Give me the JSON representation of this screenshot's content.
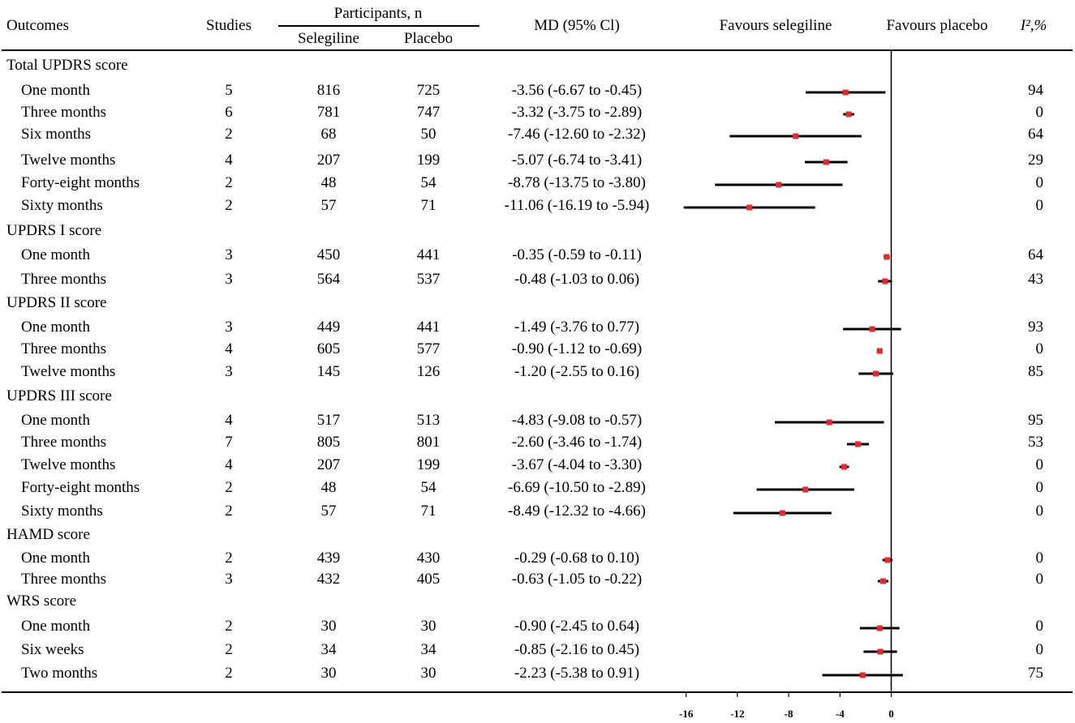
{
  "headers": {
    "outcomes": "Outcomes",
    "studies": "Studies",
    "participants": "Participants, n",
    "selegiline": "Selegiline",
    "placebo": "Placebo",
    "md": "MD (95% Cl)",
    "favours_selegiline": "Favours selegiline",
    "favours_placebo": "Favours placebo",
    "i2": "I²,%"
  },
  "chart_data": {
    "type": "forest",
    "title": "",
    "xlabel": "",
    "xlim": [
      -17.5,
      2.3
    ],
    "xticks": [
      -16,
      -12,
      -8,
      -4,
      0
    ],
    "xtick_labels": [
      "-16",
      "-12",
      "-8",
      "-4",
      "0"
    ],
    "reference_line": 0,
    "groups": [
      {
        "name": "Total UPDRS score",
        "rows": [
          {
            "label": "One month",
            "studies": "5",
            "selegiline": "816",
            "placebo": "725",
            "md_text": "-3.56 (-6.67 to -0.45)",
            "md": -3.56,
            "lo": -6.67,
            "hi": -0.45,
            "i2": "94"
          },
          {
            "label": "Three months",
            "studies": "6",
            "selegiline": "781",
            "placebo": "747",
            "md_text": "-3.32 (-3.75 to -2.89)",
            "md": -3.32,
            "lo": -3.75,
            "hi": -2.89,
            "i2": "0"
          },
          {
            "label": "Six months",
            "studies": "2",
            "selegiline": "68",
            "placebo": "50",
            "md_text": "-7.46 (-12.60 to -2.32)",
            "md": -7.46,
            "lo": -12.6,
            "hi": -2.32,
            "i2": "64"
          },
          {
            "label": "Twelve months",
            "studies": "4",
            "selegiline": "207",
            "placebo": "199",
            "md_text": "-5.07 (-6.74 to -3.41)",
            "md": -5.07,
            "lo": -6.74,
            "hi": -3.41,
            "i2": "29"
          },
          {
            "label": "Forty-eight months",
            "studies": "2",
            "selegiline": "48",
            "placebo": "54",
            "md_text": "-8.78 (-13.75 to -3.80)",
            "md": -8.78,
            "lo": -13.75,
            "hi": -3.8,
            "i2": "0"
          },
          {
            "label": "Sixty months",
            "studies": "2",
            "selegiline": "57",
            "placebo": "71",
            "md_text": "-11.06 (-16.19 to -5.94)",
            "md": -11.06,
            "lo": -16.19,
            "hi": -5.94,
            "i2": "0"
          }
        ]
      },
      {
        "name": "UPDRS I score",
        "rows": [
          {
            "label": "One month",
            "studies": "3",
            "selegiline": "450",
            "placebo": "441",
            "md_text": "-0.35 (-0.59 to -0.11)",
            "md": -0.35,
            "lo": -0.59,
            "hi": -0.11,
            "i2": "64"
          },
          {
            "label": "Three months",
            "studies": "3",
            "selegiline": "564",
            "placebo": "537",
            "md_text": "-0.48 (-1.03 to 0.06)",
            "md": -0.48,
            "lo": -1.03,
            "hi": 0.06,
            "i2": "43"
          }
        ]
      },
      {
        "name": "UPDRS II score",
        "rows": [
          {
            "label": "One month",
            "studies": "3",
            "selegiline": "449",
            "placebo": "441",
            "md_text": "-1.49 (-3.76 to 0.77)",
            "md": -1.49,
            "lo": -3.76,
            "hi": 0.77,
            "i2": "93"
          },
          {
            "label": "Three months",
            "studies": "4",
            "selegiline": "605",
            "placebo": "577",
            "md_text": "-0.90 (-1.12 to -0.69)",
            "md": -0.9,
            "lo": -1.12,
            "hi": -0.69,
            "i2": "0"
          },
          {
            "label": "Twelve months",
            "studies": "3",
            "selegiline": "145",
            "placebo": "126",
            "md_text": "-1.20 (-2.55 to 0.16)",
            "md": -1.2,
            "lo": -2.55,
            "hi": 0.16,
            "i2": "85"
          }
        ]
      },
      {
        "name": "UPDRS III score",
        "rows": [
          {
            "label": "One month",
            "studies": "4",
            "selegiline": "517",
            "placebo": "513",
            "md_text": "-4.83 (-9.08 to -0.57)",
            "md": -4.83,
            "lo": -9.08,
            "hi": -0.57,
            "i2": "95"
          },
          {
            "label": "Three months",
            "studies": "7",
            "selegiline": "805",
            "placebo": "801",
            "md_text": "-2.60 (-3.46 to -1.74)",
            "md": -2.6,
            "lo": -3.46,
            "hi": -1.74,
            "i2": "53"
          },
          {
            "label": "Twelve months",
            "studies": "4",
            "selegiline": "207",
            "placebo": "199",
            "md_text": "-3.67 (-4.04 to -3.30)",
            "md": -3.67,
            "lo": -4.04,
            "hi": -3.3,
            "i2": "0"
          },
          {
            "label": "Forty-eight months",
            "studies": "2",
            "selegiline": "48",
            "placebo": "54",
            "md_text": "-6.69 (-10.50 to -2.89)",
            "md": -6.69,
            "lo": -10.5,
            "hi": -2.89,
            "i2": "0"
          },
          {
            "label": "Sixty months",
            "studies": "2",
            "selegiline": "57",
            "placebo": "71",
            "md_text": "-8.49 (-12.32 to -4.66)",
            "md": -8.49,
            "lo": -12.32,
            "hi": -4.66,
            "i2": "0"
          }
        ]
      },
      {
        "name": "HAMD score",
        "rows": [
          {
            "label": "One month",
            "studies": "2",
            "selegiline": "439",
            "placebo": "430",
            "md_text": "-0.29 (-0.68 to 0.10)",
            "md": -0.29,
            "lo": -0.68,
            "hi": 0.1,
            "i2": "0"
          },
          {
            "label": "Three months",
            "studies": "3",
            "selegiline": "432",
            "placebo": "405",
            "md_text": "-0.63 (-1.05 to -0.22)",
            "md": -0.63,
            "lo": -1.05,
            "hi": -0.22,
            "i2": "0"
          }
        ]
      },
      {
        "name": "WRS score",
        "rows": [
          {
            "label": "One month",
            "studies": "2",
            "selegiline": "30",
            "placebo": "30",
            "md_text": "-0.90 (-2.45 to 0.64)",
            "md": -0.9,
            "lo": -2.45,
            "hi": 0.64,
            "i2": "0"
          },
          {
            "label": "Six weeks",
            "studies": "2",
            "selegiline": "34",
            "placebo": "34",
            "md_text": "-0.85 (-2.16 to 0.45)",
            "md": -0.85,
            "lo": -2.16,
            "hi": 0.45,
            "i2": "0"
          },
          {
            "label": "Two months",
            "studies": "2",
            "selegiline": "30",
            "placebo": "30",
            "md_text": "-2.23 (-5.38 to 0.91)",
            "md": -2.23,
            "lo": -5.38,
            "hi": 0.91,
            "i2": "75"
          }
        ]
      }
    ]
  },
  "colors": {
    "point": "#e8262b",
    "line": "#000000",
    "text": "#000000"
  }
}
